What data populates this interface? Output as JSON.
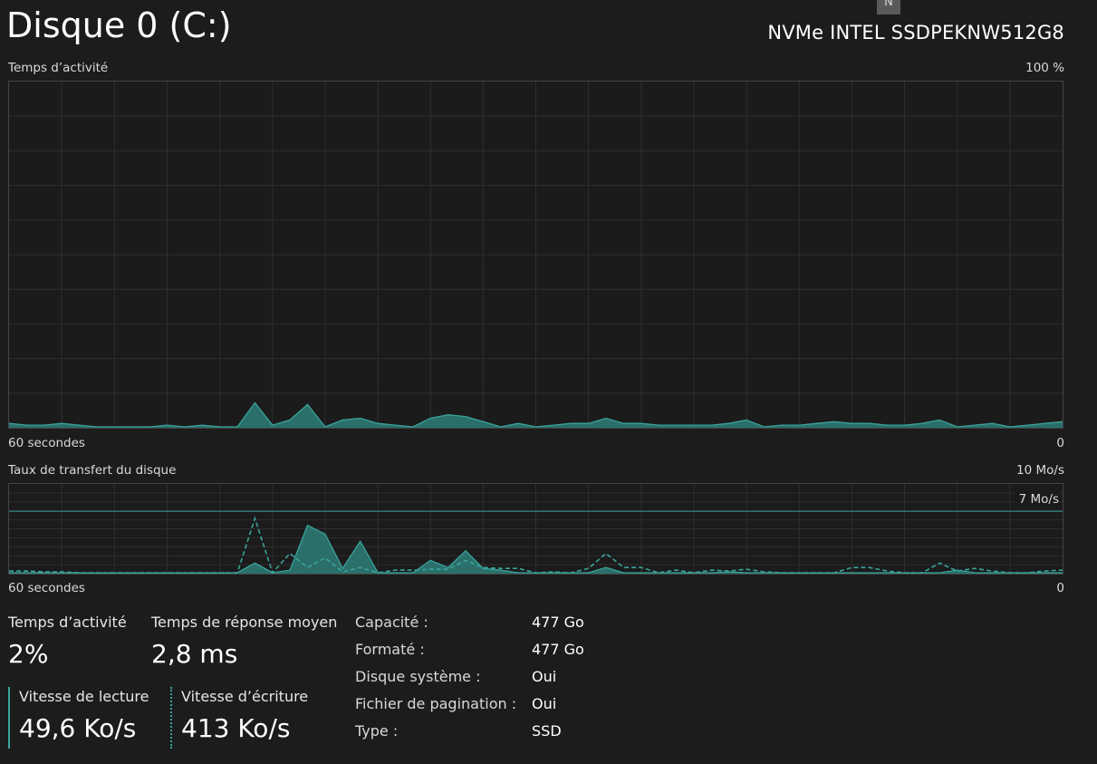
{
  "header": {
    "title": "Disque 0 (C:)",
    "badge": "N",
    "model": "NVMe INTEL SSDPEKNW512G8"
  },
  "activity_chart": {
    "label": "Temps d’activité",
    "max_label": "100 %",
    "time_label": "60 secondes",
    "min_label": "0"
  },
  "transfer_chart": {
    "label": "Taux de transfert du disque",
    "max_label": "10 Mo/s",
    "threshold_label": "7 Mo/s",
    "time_label": "60 secondes",
    "min_label": "0"
  },
  "stats": {
    "activity": {
      "label": "Temps d’activité",
      "value": "2%"
    },
    "response": {
      "label": "Temps de réponse moyen",
      "value": "2,8 ms"
    },
    "read": {
      "label": "Vitesse de lecture",
      "value": "49,6 Ko/s"
    },
    "write": {
      "label": "Vitesse d’écriture",
      "value": "413 Ko/s"
    }
  },
  "properties": [
    {
      "key": "Capacité :",
      "value": "477 Go"
    },
    {
      "key": "Formaté :",
      "value": "477 Go"
    },
    {
      "key": "Disque système :",
      "value": "Oui"
    },
    {
      "key": "Fichier de pagination :",
      "value": "Oui"
    },
    {
      "key": "Type :",
      "value": "SSD"
    }
  ],
  "colors": {
    "accent": "#3aa39a",
    "fill": "#2d7e78",
    "grid": "#2e2e2e",
    "background": "#1c1c1c"
  },
  "chart_data": [
    {
      "type": "area",
      "title": "Temps d’activité",
      "xlabel": "60 secondes",
      "ylim": [
        0,
        100
      ],
      "x": [
        60,
        59,
        58,
        57,
        56,
        55,
        54,
        53,
        52,
        51,
        50,
        49,
        48,
        47,
        46,
        45,
        44,
        43,
        42,
        41,
        40,
        39,
        38,
        37,
        36,
        35,
        34,
        33,
        32,
        31,
        30,
        29,
        28,
        27,
        26,
        25,
        24,
        23,
        22,
        21,
        20,
        19,
        18,
        17,
        16,
        15,
        14,
        13,
        12,
        11,
        10,
        9,
        8,
        7,
        6,
        5,
        4,
        3,
        2,
        1,
        0
      ],
      "series": [
        {
          "values": [
            1,
            0.5,
            0.5,
            1,
            0.5,
            0,
            0,
            0,
            0,
            0.5,
            0,
            0.5,
            0,
            0,
            7,
            0.5,
            2,
            6.5,
            0,
            2,
            2.5,
            1,
            0.5,
            0,
            2.5,
            3.5,
            3,
            1.5,
            0,
            1,
            0,
            0.5,
            1,
            1,
            2.5,
            1,
            1,
            0.5,
            0.5,
            0.5,
            0.5,
            1,
            2,
            0,
            0.5,
            0.5,
            1,
            1.5,
            1,
            1,
            0.5,
            0.5,
            1,
            2,
            0,
            0.5,
            1,
            0,
            0.5,
            1,
            1.5
          ]
        }
      ]
    },
    {
      "type": "area",
      "title": "Taux de transfert du disque",
      "xlabel": "60 secondes",
      "ylim": [
        0,
        10
      ],
      "threshold": 7,
      "x": [
        60,
        59,
        58,
        57,
        56,
        55,
        54,
        53,
        52,
        51,
        50,
        49,
        48,
        47,
        46,
        45,
        44,
        43,
        42,
        41,
        40,
        39,
        38,
        37,
        36,
        35,
        34,
        33,
        32,
        31,
        30,
        29,
        28,
        27,
        26,
        25,
        24,
        23,
        22,
        21,
        20,
        19,
        18,
        17,
        16,
        15,
        14,
        13,
        12,
        11,
        10,
        9,
        8,
        7,
        6,
        5,
        4,
        3,
        2,
        1,
        0
      ],
      "series": [
        {
          "name": "Vitesse de lecture",
          "values": [
            0,
            0,
            0,
            0,
            0,
            0,
            0,
            0,
            0,
            0,
            0,
            0,
            0,
            0,
            1.1,
            0,
            0.3,
            5.4,
            4.4,
            0.5,
            3.6,
            0,
            0,
            0,
            1.4,
            0.6,
            2.5,
            0.5,
            0.3,
            0,
            0,
            0,
            0,
            0,
            0.6,
            0,
            0,
            0,
            0,
            0,
            0,
            0.1,
            0,
            0,
            0,
            0,
            0,
            0,
            0,
            0,
            0,
            0,
            0,
            0,
            0.3,
            0,
            0,
            0,
            0,
            0,
            0
          ]
        },
        {
          "name": "Vitesse d’écriture",
          "values": [
            0.2,
            0.2,
            0.1,
            0.1,
            0,
            0,
            0,
            0,
            0,
            0,
            0,
            0,
            0,
            0,
            6.2,
            0,
            2.2,
            0.6,
            1.7,
            0.1,
            0.6,
            0,
            0.3,
            0.3,
            0.4,
            0.4,
            1.4,
            0.6,
            0.5,
            0.5,
            0,
            0.1,
            0,
            0.5,
            2.2,
            0.6,
            0.6,
            0,
            0.3,
            0,
            0.3,
            0.2,
            0.4,
            0.1,
            0,
            0,
            0,
            0,
            0.6,
            0.6,
            0.2,
            0,
            0,
            1.1,
            0.2,
            0.5,
            0.2,
            0,
            0,
            0.2,
            0.3
          ]
        }
      ]
    }
  ]
}
